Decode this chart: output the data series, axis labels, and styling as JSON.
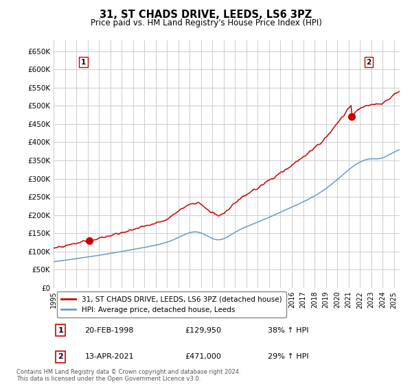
{
  "title": "31, ST CHADS DRIVE, LEEDS, LS6 3PZ",
  "subtitle": "Price paid vs. HM Land Registry's House Price Index (HPI)",
  "legend_line1": "31, ST CHADS DRIVE, LEEDS, LS6 3PZ (detached house)",
  "legend_line2": "HPI: Average price, detached house, Leeds",
  "annotation1_date": "20-FEB-1998",
  "annotation1_price": "£129,950",
  "annotation1_hpi": "38% ↑ HPI",
  "annotation2_date": "13-APR-2021",
  "annotation2_price": "£471,000",
  "annotation2_hpi": "29% ↑ HPI",
  "footnote": "Contains HM Land Registry data © Crown copyright and database right 2024.\nThis data is licensed under the Open Government Licence v3.0.",
  "line_color_red": "#cc0000",
  "line_color_blue": "#6699cc",
  "bg_color": "#ffffff",
  "grid_color": "#cccccc",
  "sale1_year": 1998.13,
  "sale1_price": 129950,
  "sale2_year": 2021.28,
  "sale2_price": 471000,
  "ylim_max": 680000,
  "xlim_min": 1995,
  "xlim_max": 2025.5
}
